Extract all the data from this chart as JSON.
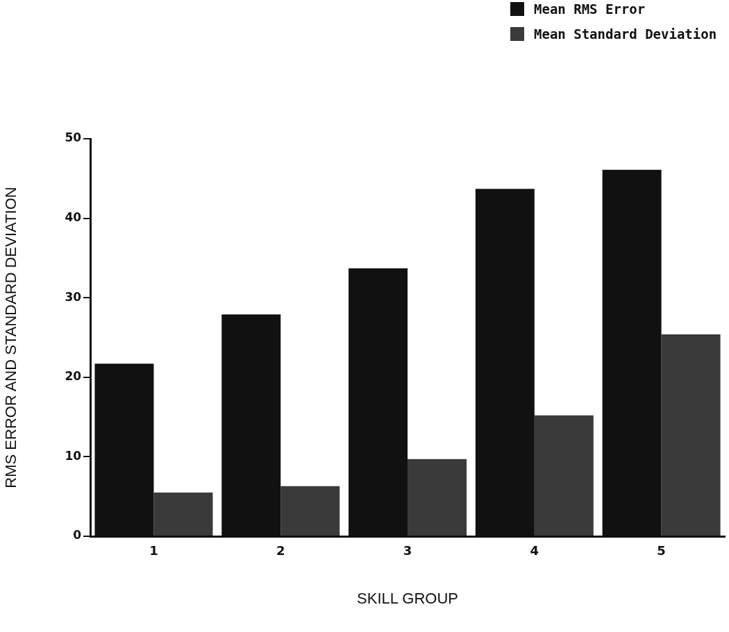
{
  "chart_data": {
    "type": "bar",
    "xlabel": "SKILL GROUP",
    "ylabel": "RMS ERROR AND STANDARD DEVIATION",
    "categories": [
      "1",
      "2",
      "3",
      "4",
      "5"
    ],
    "series": [
      {
        "name": "Mean RMS Error",
        "color": "#111111",
        "values": [
          21.7,
          27.9,
          33.7,
          43.7,
          46.1
        ]
      },
      {
        "name": "Mean Standard Deviation",
        "color": "#3a3a3a",
        "values": [
          5.5,
          6.3,
          9.7,
          15.2,
          25.4
        ]
      }
    ],
    "ylim": [
      0,
      50
    ],
    "yticks": [
      0,
      10,
      20,
      30,
      40,
      50
    ],
    "grid": false,
    "legend": "top right"
  }
}
